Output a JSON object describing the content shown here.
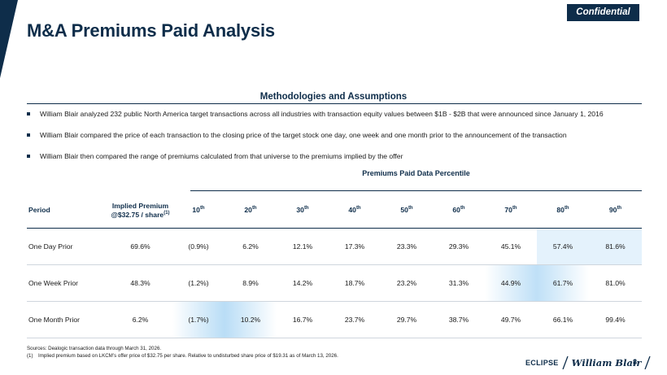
{
  "header": {
    "title": "M&A Premiums Paid Analysis",
    "badge": "Confidential"
  },
  "methodology": {
    "heading": "Methodologies and Assumptions",
    "bullets": [
      "William Blair analyzed 232 public North America target transactions across all industries with transaction equity values between $1B - $2B that were announced since January 1, 2016",
      "William Blair compared the price of each transaction to the closing price of the target stock one day, one week and one month prior to the announcement of the transaction",
      "William Blair then compared the range of premiums calculated from that universe to the premiums implied by the offer"
    ]
  },
  "table": {
    "percentile_heading": "Premiums Paid Data Percentile",
    "headers": {
      "period": "Period",
      "implied_line1": "Implied Premium",
      "implied_line2": "@$32.75 / share",
      "implied_sup": "(1)",
      "pct_suffix": "th",
      "percentiles": [
        "10",
        "20",
        "30",
        "40",
        "50",
        "60",
        "70",
        "80",
        "90"
      ]
    },
    "rows": [
      {
        "period": "One Day Prior",
        "implied": "69.6%",
        "values": [
          "(0.9%)",
          "6.2%",
          "12.1%",
          "17.3%",
          "23.3%",
          "29.3%",
          "45.1%",
          "57.4%",
          "81.6%"
        ]
      },
      {
        "period": "One Week Prior",
        "implied": "48.3%",
        "values": [
          "(1.2%)",
          "8.9%",
          "14.2%",
          "18.7%",
          "23.2%",
          "31.3%",
          "44.9%",
          "61.7%",
          "81.0%"
        ]
      },
      {
        "period": "One Month Prior",
        "implied": "6.2%",
        "values": [
          "(1.7%)",
          "10.2%",
          "16.7%",
          "23.7%",
          "29.7%",
          "38.7%",
          "49.7%",
          "66.1%",
          "99.4%"
        ]
      }
    ]
  },
  "footnotes": {
    "sources": "Sources: Dealogic transaction data through March 31, 2026.",
    "note_num": "(1)",
    "note_text": "Implied premium based on LKCM’s offer price of $32.75 per share. Relative to undisturbed share price of $19.31 as of March 13, 2026."
  },
  "footer": {
    "brand_left": "ECLIPSE",
    "brand_right": "William Blair",
    "page_number": "8"
  },
  "colors": {
    "navy": "#0e2d4a",
    "highlight": "#bfe0f7",
    "highlight_light": "#e4f2fc"
  }
}
